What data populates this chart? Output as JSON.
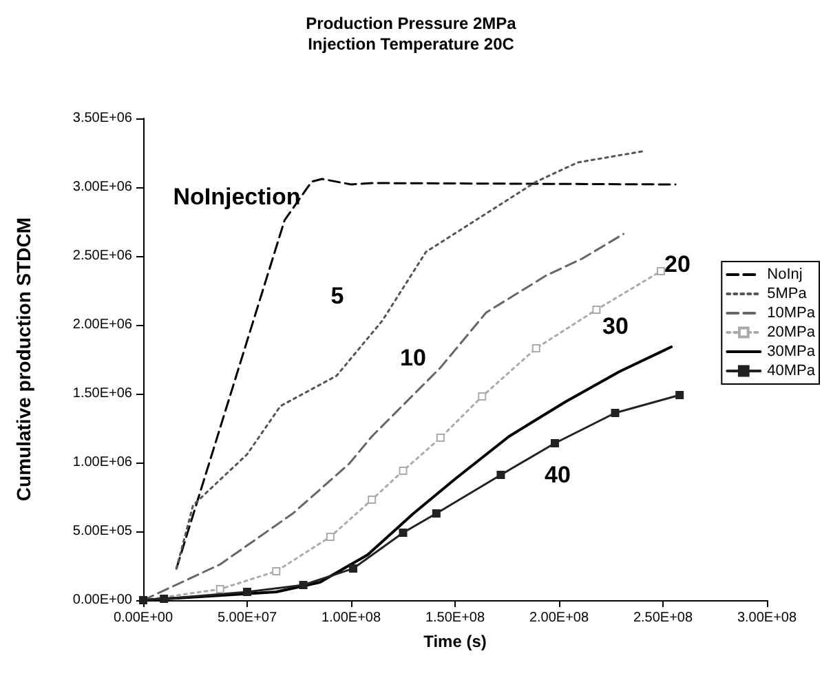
{
  "chart_data": {
    "type": "line",
    "title": "Production Pressure 2MPa",
    "subtitle": "Injection Temperature 20C",
    "xlabel": "Time (s)",
    "ylabel": "Cumulative production STDCM",
    "xlim": [
      0,
      300000000
    ],
    "ylim": [
      0,
      3500000
    ],
    "xticks": [
      {
        "value": 0,
        "label": "0.00E+00"
      },
      {
        "value": 50000000,
        "label": "5.00E+07"
      },
      {
        "value": 100000000,
        "label": "1.00E+08"
      },
      {
        "value": 150000000,
        "label": "1.50E+08"
      },
      {
        "value": 200000000,
        "label": "2.00E+08"
      },
      {
        "value": 250000000,
        "label": "2.50E+08"
      },
      {
        "value": 300000000,
        "label": "3.00E+08"
      }
    ],
    "yticks": [
      {
        "value": 0,
        "label": "0.00E+00"
      },
      {
        "value": 500000,
        "label": "5.00E+05"
      },
      {
        "value": 1000000,
        "label": "1.00E+06"
      },
      {
        "value": 1500000,
        "label": "1.50E+06"
      },
      {
        "value": 2000000,
        "label": "2.00E+06"
      },
      {
        "value": 2500000,
        "label": "2.50E+06"
      },
      {
        "value": 3000000,
        "label": "3.00E+06"
      },
      {
        "value": 3500000,
        "label": "3.50E+06"
      }
    ],
    "grid": false,
    "legend": "right",
    "series": [
      {
        "name": "NoInj",
        "color": "#000000",
        "line_style": "dashed",
        "marker": "none",
        "x": [
          16000000,
          68000000,
          81000000,
          86000000,
          100000000,
          110000000,
          256000000
        ],
        "values": [
          230000,
          2760000,
          3040000,
          3060000,
          3020000,
          3030000,
          3020000
        ]
      },
      {
        "name": "5MPa",
        "color": "#555555",
        "line_style": "dotted",
        "marker": "none",
        "x": [
          16000000,
          24000000,
          50000000,
          66000000,
          93000000,
          115000000,
          136000000,
          163000000,
          189000000,
          209000000,
          240000000
        ],
        "values": [
          230000,
          690000,
          1060000,
          1410000,
          1630000,
          2030000,
          2530000,
          2790000,
          3040000,
          3180000,
          3260000
        ]
      },
      {
        "name": "10MPa",
        "color": "#666666",
        "line_style": "dashed",
        "marker": "none",
        "x": [
          0,
          37000000,
          72000000,
          99000000,
          110000000,
          143000000,
          165000000,
          194000000,
          211000000,
          231000000
        ],
        "values": [
          0,
          260000,
          630000,
          990000,
          1190000,
          1690000,
          2090000,
          2360000,
          2480000,
          2660000
        ]
      },
      {
        "name": "20MPa",
        "color": "#aaaaaa",
        "line_style": "dotted",
        "marker": "square",
        "x": [
          0,
          37000000,
          64000000,
          90000000,
          110000000,
          125000000,
          143000000,
          163000000,
          189000000,
          218000000,
          249000000
        ],
        "values": [
          0,
          80000,
          210000,
          460000,
          730000,
          940000,
          1180000,
          1480000,
          1830000,
          2110000,
          2390000
        ]
      },
      {
        "name": "30MPa",
        "color": "#000000",
        "line_style": "solid",
        "marker": "none",
        "x": [
          0,
          64000000,
          85000000,
          108000000,
          130000000,
          150000000,
          176000000,
          203000000,
          229000000,
          254000000
        ],
        "values": [
          0,
          60000,
          130000,
          330000,
          630000,
          880000,
          1190000,
          1440000,
          1660000,
          1840000
        ]
      },
      {
        "name": "40MPa",
        "color": "#222222",
        "line_style": "solid",
        "marker": "square",
        "x": [
          0,
          10000000,
          50000000,
          77000000,
          101000000,
          125000000,
          141000000,
          172000000,
          198000000,
          227000000,
          258000000
        ],
        "values": [
          0,
          10000,
          60000,
          110000,
          230000,
          490000,
          630000,
          910000,
          1140000,
          1360000,
          1490000
        ]
      }
    ],
    "annotations": [
      "NoInjection",
      "5",
      "10",
      "20",
      "30",
      "40"
    ]
  }
}
